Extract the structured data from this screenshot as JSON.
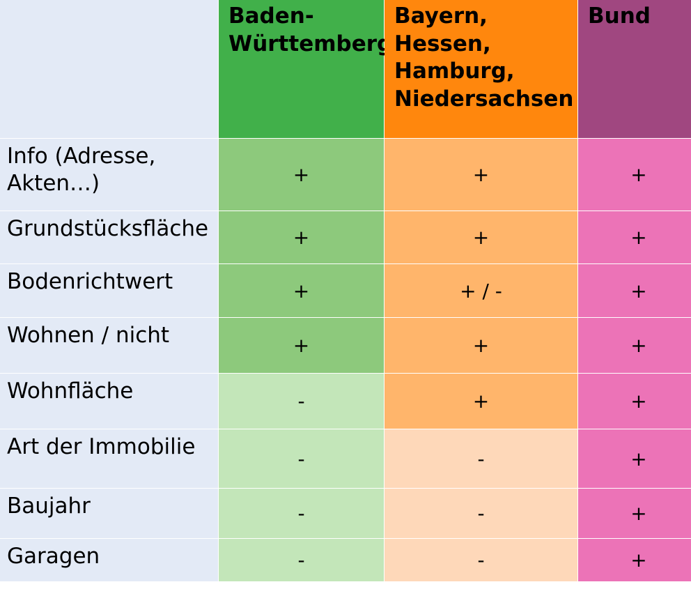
{
  "headers": {
    "bw": "Baden-\nWürttemberg",
    "by": "Bayern, Hessen,\nHamburg,\nNiedersachsen",
    "bund": "Bund"
  },
  "colors": {
    "bw_header": "#41b04a",
    "by_header": "#ff870d",
    "bund_header": "#a04780",
    "bw_plus": "#8dc97c",
    "bw_minus": "#c3e6b9",
    "by_plus": "#ffb56b",
    "by_minus": "#fed8b9",
    "bund_plus": "#ec73b7",
    "label_bg": "#e3eaf6"
  },
  "rows": [
    {
      "label": "Info (Adresse,\nAkten…)",
      "bw": "+",
      "by": "+",
      "bund": "+"
    },
    {
      "label": "Grundstücksfläche",
      "bw": "+",
      "by": "+",
      "bund": "+"
    },
    {
      "label": "Bodenrichtwert",
      "bw": "+",
      "by": "+ / -",
      "bund": "+"
    },
    {
      "label": "Wohnen / nicht",
      "bw": "+",
      "by": "+",
      "bund": "+"
    },
    {
      "label": "Wohnfläche",
      "bw": "-",
      "by": "+",
      "bund": "+"
    },
    {
      "label": "Art der Immobilie",
      "bw": "-",
      "by": "-",
      "bund": "+"
    },
    {
      "label": "Baujahr",
      "bw": "-",
      "by": "-",
      "bund": "+"
    },
    {
      "label": "Garagen",
      "bw": "-",
      "by": "-",
      "bund": "+"
    }
  ]
}
